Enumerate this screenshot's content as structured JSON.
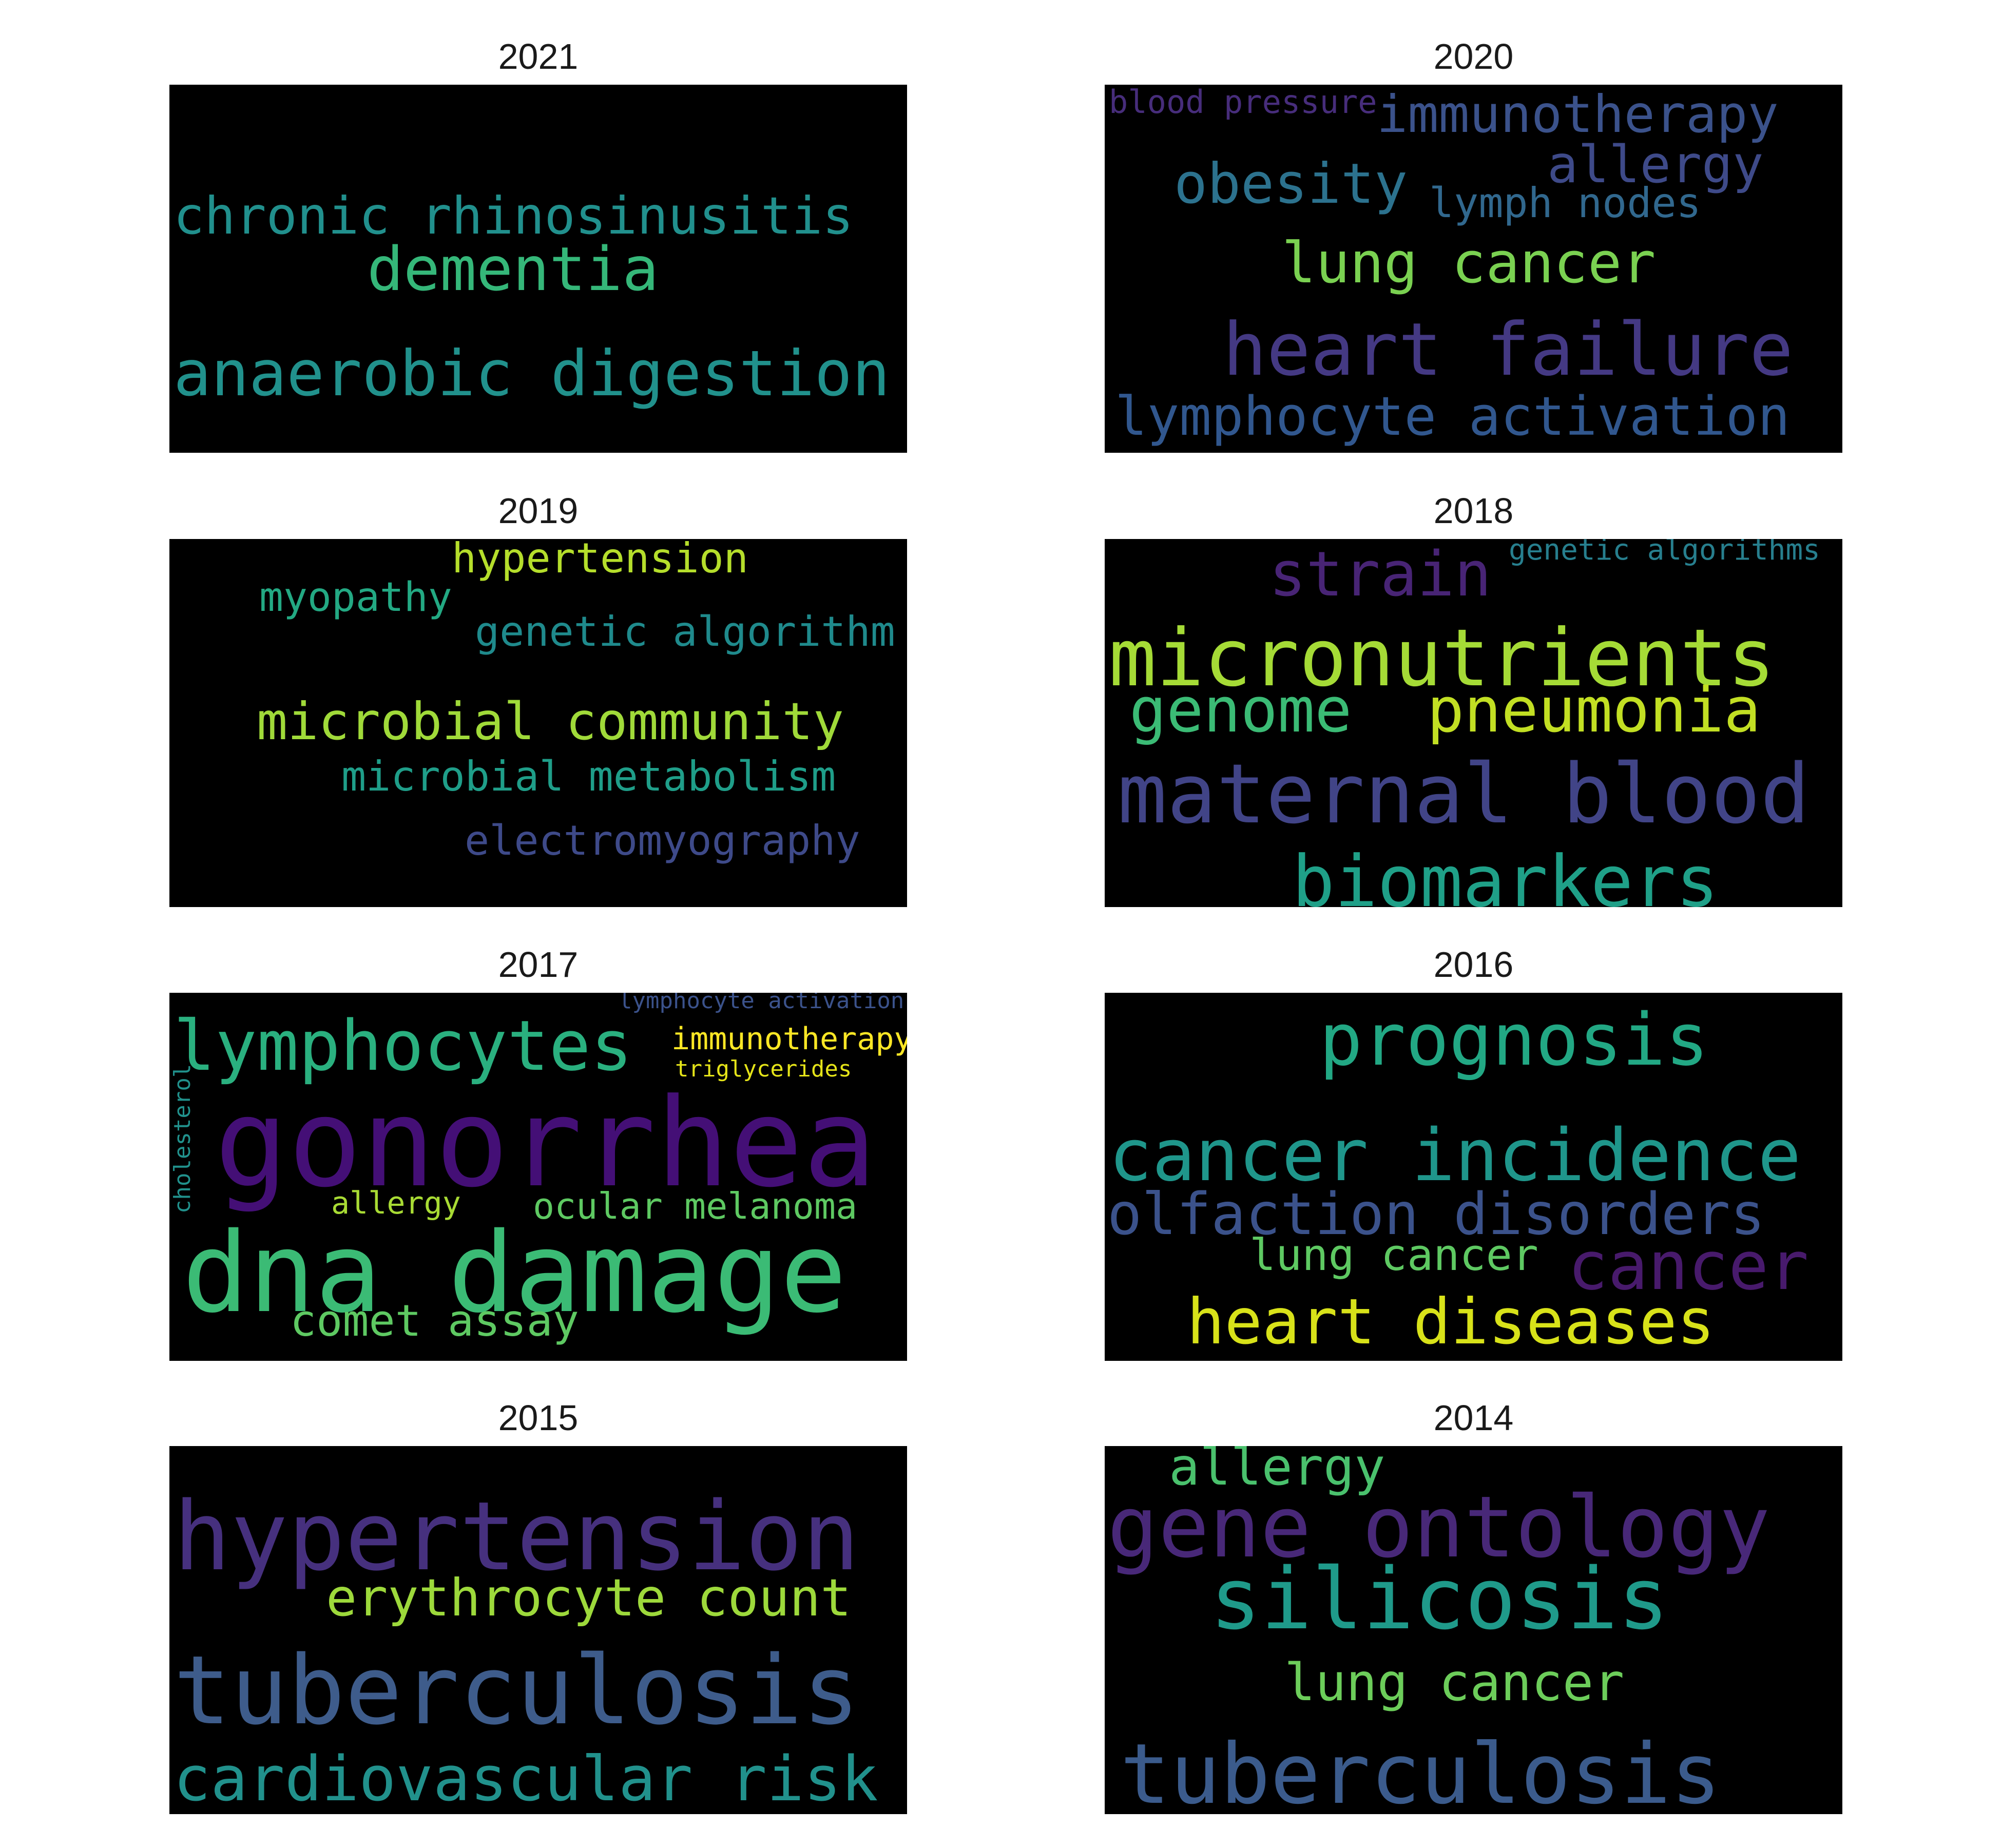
{
  "chart_data": [
    {
      "type": "wordcloud",
      "title": "2021",
      "words": [
        {
          "text": "chronic rhinosinusitis",
          "color": "#21908d",
          "weight": 3
        },
        {
          "text": "dementia",
          "color": "#35b779",
          "weight": 3
        },
        {
          "text": "anaerobic digestion",
          "color": "#21918c",
          "weight": 3
        }
      ]
    },
    {
      "type": "wordcloud",
      "title": "2020",
      "words": [
        {
          "text": "blood pressure",
          "color": "#472d7b",
          "weight": 1
        },
        {
          "text": "immunotherapy",
          "color": "#3b528b",
          "weight": 2
        },
        {
          "text": "allergy",
          "color": "#3e4a89",
          "weight": 2
        },
        {
          "text": "obesity",
          "color": "#2c728e",
          "weight": 2
        },
        {
          "text": "lymph nodes",
          "color": "#31688e",
          "weight": 1
        },
        {
          "text": "lung cancer",
          "color": "#7ad151",
          "weight": 2
        },
        {
          "text": "heart failure",
          "color": "#443983",
          "weight": 3
        },
        {
          "text": "lymphocyte activation",
          "color": "#31578e",
          "weight": 2
        }
      ]
    },
    {
      "type": "wordcloud",
      "title": "2019",
      "words": [
        {
          "text": "hypertension",
          "color": "#b5de2b",
          "weight": 1
        },
        {
          "text": "myopathy",
          "color": "#23a983",
          "weight": 1
        },
        {
          "text": "genetic algorithm",
          "color": "#1f8a8c",
          "weight": 1
        },
        {
          "text": "microbial community",
          "color": "#a0da39",
          "weight": 2
        },
        {
          "text": "microbial metabolism",
          "color": "#1f9e89",
          "weight": 1
        },
        {
          "text": "electromyography",
          "color": "#3e4a89",
          "weight": 1
        }
      ]
    },
    {
      "type": "wordcloud",
      "title": "2018",
      "words": [
        {
          "text": "strain",
          "color": "#482475",
          "weight": 2
        },
        {
          "text": "genetic algorithms",
          "color": "#277f8e",
          "weight": 1
        },
        {
          "text": "micronutrients",
          "color": "#a5db36",
          "weight": 3
        },
        {
          "text": "genome",
          "color": "#3bbb75",
          "weight": 2
        },
        {
          "text": "pneumonia",
          "color": "#c2df23",
          "weight": 2
        },
        {
          "text": "maternal blood",
          "color": "#414487",
          "weight": 3
        },
        {
          "text": "biomarkers",
          "color": "#1fa088",
          "weight": 2
        }
      ]
    },
    {
      "type": "wordcloud",
      "title": "2017",
      "words": [
        {
          "text": "lymphocyte activation",
          "color": "#3b528b",
          "weight": 1
        },
        {
          "text": "lymphocytes",
          "color": "#2ab07f",
          "weight": 2
        },
        {
          "text": "immunotherapy",
          "color": "#fde725",
          "weight": 1
        },
        {
          "text": "triglycerides",
          "color": "#e5e419",
          "weight": 1
        },
        {
          "text": "cholesterol",
          "color": "#21918c",
          "weight": 1
        },
        {
          "text": "gonorrhea",
          "color": "#440f76",
          "weight": 3
        },
        {
          "text": "allergy",
          "color": "#a8db34",
          "weight": 1
        },
        {
          "text": "ocular melanoma",
          "color": "#5ec962",
          "weight": 1
        },
        {
          "text": "dna damage",
          "color": "#3bbb75",
          "weight": 3
        },
        {
          "text": "comet assay",
          "color": "#5ec962",
          "weight": 1
        }
      ]
    },
    {
      "type": "wordcloud",
      "title": "2016",
      "words": [
        {
          "text": "prognosis",
          "color": "#22a884",
          "weight": 2
        },
        {
          "text": "cancer incidence",
          "color": "#1f968b",
          "weight": 2
        },
        {
          "text": "olfaction disorders",
          "color": "#3b528b",
          "weight": 2
        },
        {
          "text": "lung cancer",
          "color": "#5ec962",
          "weight": 1
        },
        {
          "text": "cancer",
          "color": "#481a6c",
          "weight": 2
        },
        {
          "text": "heart diseases",
          "color": "#d8e219",
          "weight": 2
        }
      ]
    },
    {
      "type": "wordcloud",
      "title": "2015",
      "words": [
        {
          "text": "hypertension",
          "color": "#46307e",
          "weight": 3
        },
        {
          "text": "erythrocyte count",
          "color": "#9dd93b",
          "weight": 2
        },
        {
          "text": "tuberculosis",
          "color": "#3e5c8b",
          "weight": 3
        },
        {
          "text": "cardiovascular risk",
          "color": "#21918c",
          "weight": 2
        }
      ]
    },
    {
      "type": "wordcloud",
      "title": "2014",
      "words": [
        {
          "text": "allergy",
          "color": "#4ac16d",
          "weight": 2
        },
        {
          "text": "gene ontology",
          "color": "#482878",
          "weight": 3
        },
        {
          "text": "silicosis",
          "color": "#1f9a8a",
          "weight": 3
        },
        {
          "text": "lung cancer",
          "color": "#6ccd5a",
          "weight": 2
        },
        {
          "text": "tuberculosis",
          "color": "#3b5b8c",
          "weight": 3
        }
      ]
    }
  ]
}
